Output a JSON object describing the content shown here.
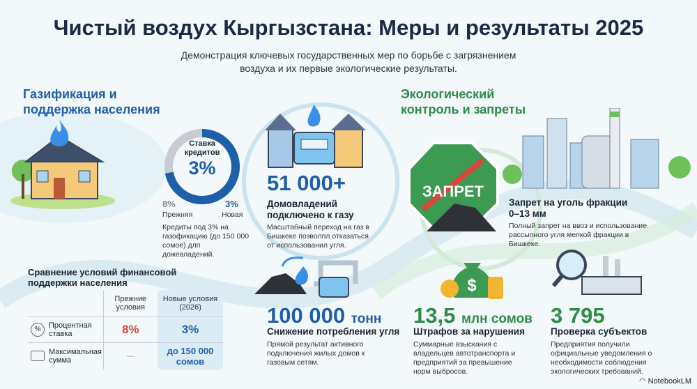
{
  "title": "Чистый воздух Кыргызстана: Меры и результаты 2025",
  "subtitle": "Демонстрация ключевых государственных мер по борьбе с загрязнением воздуха и их первые экологические результаты.",
  "left": {
    "header": "Газификация и поддержка населения",
    "donut": {
      "title": "Ставка кредитов",
      "value": "3%",
      "old_value": "8%",
      "old_label": "Прежняя",
      "new_value": "3%",
      "new_label": "Новая",
      "fill_fraction": 0.72,
      "desc": "Кредиты под 3% на газофикацию (до 150 000 сомое) длп дожевладений."
    },
    "table": {
      "title": "Сравнение условий финансовой поддержки населения",
      "col_old": "Прежние условия",
      "col_new": "Новые условия (2026)",
      "rows": [
        {
          "icon": "percent-icon",
          "label": "Процентная ставка",
          "old": "8%",
          "new": "3%"
        },
        {
          "icon": "wallet-icon",
          "label": "Максимальная сумма",
          "old": "—",
          "new": "до 150 000 сомов"
        }
      ]
    }
  },
  "middle": {
    "stat1": {
      "value": "51 000+",
      "label": "Домовладений подключено к газу",
      "desc": "Масштабный переход на газ в Бишкеке позволпл отказаться от использованил угля."
    },
    "stat2": {
      "value": "100 000",
      "unit": "тонн",
      "label": "Снижение потребления угля",
      "desc": "Прямой результат активного подключения жилых домов к газовым сетям."
    }
  },
  "right": {
    "header": "Экологический контроль и запреты",
    "sign_text": "ЗАПРЕТ",
    "ban": {
      "label": "Запрет на уголь фракции 0–13 мм",
      "desc": "Полный запрет на ввоз и использование рассыпного угля мелкой фракции в Бишкеке."
    },
    "fines": {
      "value": "13,5",
      "unit": "млн сомов",
      "label": "Штрафов за нарушения",
      "desc": "Суммарные взыскания с владельцев автотранспорта и предприятий за превышение норм выбросов."
    },
    "checks": {
      "value": "3 795",
      "label": "Проверка субъектов",
      "desc": "Предприятия получили официальные уведомления о необходимости соблюдения экологических требований."
    }
  },
  "logo": "NotebookLM",
  "colors": {
    "blue": "#1f5fa8",
    "green": "#2e8b4a",
    "red": "#d9473a"
  }
}
